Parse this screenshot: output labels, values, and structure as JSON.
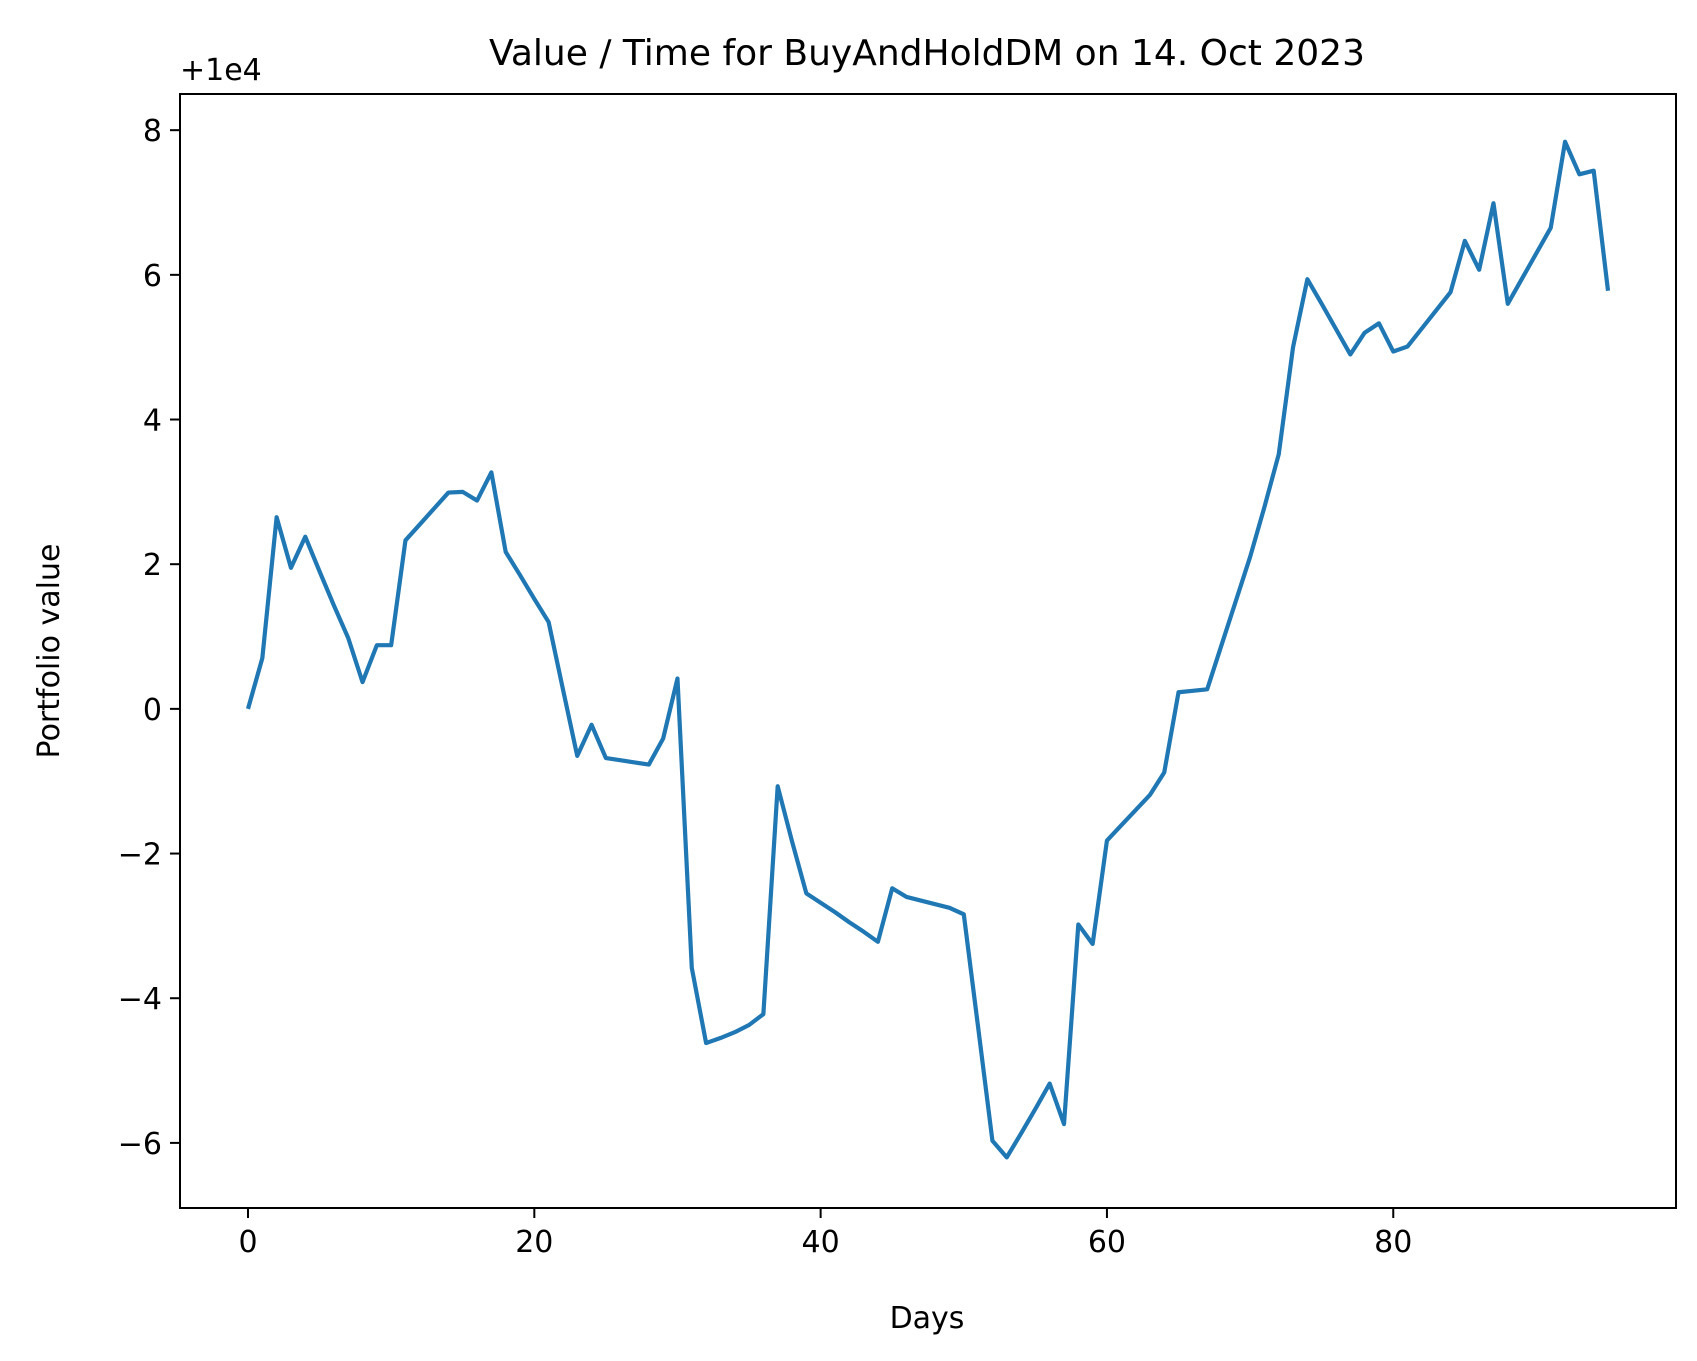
{
  "chart_data": {
    "type": "line",
    "title": "Value / Time for BuyAndHoldDM on 14. Oct 2023",
    "xlabel": "Days",
    "ylabel": "Portfolio value",
    "y_offset_label": "+1e4",
    "xlim": [
      -4.75,
      99.75
    ],
    "ylim": [
      -6.9,
      8.5
    ],
    "x_ticks": [
      0,
      20,
      40,
      60,
      80
    ],
    "x_tick_labels": [
      "0",
      "20",
      "40",
      "60",
      "80"
    ],
    "y_ticks": [
      -6,
      -4,
      -2,
      0,
      2,
      4,
      6,
      8
    ],
    "y_tick_labels": [
      "−6",
      "−4",
      "−2",
      "0",
      "2",
      "4",
      "6",
      "8"
    ],
    "grid": false,
    "line_color": "#1f77b4",
    "series": [
      {
        "x": [
          0,
          1,
          2,
          3,
          4,
          5,
          6,
          7,
          8,
          9,
          10,
          11,
          12,
          13,
          14,
          15,
          16,
          17,
          18,
          19,
          20,
          21,
          22,
          23,
          24,
          25,
          26,
          27,
          28,
          29,
          30,
          31,
          32,
          33,
          34,
          35,
          36,
          37,
          38,
          39,
          40,
          41,
          42,
          43,
          44,
          45,
          46,
          47,
          48,
          49,
          50,
          51,
          52,
          53,
          54,
          55,
          56,
          57,
          58,
          59,
          60,
          61,
          62,
          63,
          64,
          65,
          66,
          67,
          68,
          69,
          70,
          71,
          72,
          73,
          74,
          75,
          76,
          77,
          78,
          79,
          80,
          81,
          82,
          83,
          84,
          85,
          86,
          87,
          88,
          89,
          90,
          91,
          92,
          93,
          94,
          95
        ],
        "values": [
          0.0,
          0.7,
          2.65,
          1.95,
          2.38,
          1.9,
          1.43,
          0.98,
          0.37,
          0.88,
          0.88,
          2.33,
          2.55,
          2.77,
          2.99,
          3.0,
          2.88,
          3.27,
          2.17,
          1.85,
          1.52,
          1.2,
          0.27,
          -0.65,
          -0.22,
          -0.68,
          -0.71,
          -0.74,
          -0.77,
          -0.41,
          0.42,
          -3.58,
          -4.62,
          -4.55,
          -4.47,
          -4.37,
          -4.22,
          -1.07,
          -1.83,
          -2.55,
          -2.68,
          -2.81,
          -2.95,
          -3.08,
          -3.22,
          -2.48,
          -2.6,
          -2.65,
          -2.7,
          -2.75,
          -2.84,
          -4.4,
          -5.97,
          -6.2,
          -5.87,
          -5.53,
          -5.18,
          -5.74,
          -2.98,
          -3.25,
          -1.82,
          -1.61,
          -1.4,
          -1.19,
          -0.88,
          0.23,
          0.25,
          0.27,
          0.88,
          1.49,
          2.1,
          2.79,
          3.52,
          5.0,
          5.94,
          5.6,
          5.25,
          4.9,
          5.2,
          5.33,
          4.94,
          5.01,
          5.26,
          5.51,
          5.76,
          6.47,
          6.07,
          6.99,
          5.6,
          5.95,
          6.3,
          6.65,
          7.84,
          7.39,
          7.44,
          5.78
        ]
      }
    ]
  }
}
